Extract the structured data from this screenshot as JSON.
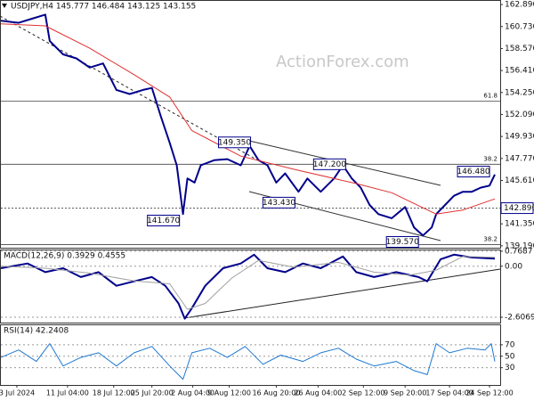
{
  "chart_data": [
    {
      "type": "line",
      "title": "USDJPY,H4  145.777 146.484 143.125 143.155",
      "watermark": "ActionForex.com",
      "xlim": [
        0,
        562
      ],
      "ylim": [
        139.0,
        163.25
      ],
      "yticks": [
        {
          "value": 162.89,
          "label": "162.890"
        },
        {
          "value": 160.73,
          "label": "160.730"
        },
        {
          "value": 158.57,
          "label": "158.570"
        },
        {
          "value": 156.41,
          "label": "156.410"
        },
        {
          "value": 154.25,
          "label": "154.250"
        },
        {
          "value": 152.09,
          "label": "152.090"
        },
        {
          "value": 149.93,
          "label": "149.930"
        },
        {
          "value": 147.77,
          "label": "147.770"
        },
        {
          "value": 145.61,
          "label": "145.610"
        },
        {
          "value": 141.35,
          "label": "141.350"
        },
        {
          "value": 139.19,
          "label": "139.190"
        }
      ],
      "series": [
        {
          "color": "#00008b",
          "x": [
            0,
            20,
            35,
            50,
            55,
            70,
            85,
            100,
            115,
            130,
            145,
            160,
            170,
            180,
            190,
            198,
            205,
            210,
            218,
            225,
            240,
            255,
            270,
            280,
            290,
            300,
            310,
            320,
            335,
            345,
            360,
            375,
            385,
            395,
            405,
            415,
            425,
            440,
            455,
            465,
            475,
            485,
            490,
            500,
            510,
            520,
            530,
            540,
            550,
            556
          ],
          "values": [
            161.3,
            161.1,
            161.5,
            161.9,
            159.3,
            158.0,
            157.6,
            156.7,
            157.1,
            154.5,
            154.1,
            154.5,
            154.7,
            151.9,
            149.3,
            147.1,
            142.3,
            145.8,
            145.4,
            147.1,
            147.6,
            147.7,
            147.1,
            149.0,
            147.6,
            147.1,
            145.4,
            146.3,
            144.5,
            145.8,
            144.5,
            145.8,
            147.1,
            145.8,
            144.9,
            143.2,
            142.3,
            141.9,
            143.0,
            141.0,
            140.2,
            141.0,
            142.3,
            143.2,
            144.1,
            144.5,
            144.5,
            144.9,
            145.1,
            146.2
          ]
        },
        {
          "color": "#e03030",
          "x": [
            0,
            50,
            100,
            150,
            190,
            215,
            270,
            330,
            400,
            440,
            490,
            520,
            556
          ],
          "values": [
            161.0,
            160.8,
            158.6,
            156.0,
            153.8,
            150.5,
            148.0,
            146.7,
            145.3,
            144.4,
            142.3,
            142.7,
            143.8
          ]
        }
      ],
      "last_price": {
        "value": 142.89,
        "label": "142.890"
      },
      "levels": [
        {
          "label": "61.8",
          "value": 153.4
        },
        {
          "label": "38.2",
          "value": 147.2
        },
        {
          "label": "38.2",
          "value": 139.3
        }
      ],
      "annotations": [
        {
          "x": 263,
          "value": 149.35,
          "label": "149.350"
        },
        {
          "x": 370,
          "value": 147.2,
          "label": "147.200"
        },
        {
          "x": 532,
          "value": 146.48,
          "label": "146.480"
        },
        {
          "x": 313,
          "value": 143.43,
          "label": "143.430"
        },
        {
          "x": 183,
          "value": 141.67,
          "label": "141.670"
        },
        {
          "x": 452,
          "value": 139.57,
          "label": "139.570"
        }
      ]
    },
    {
      "type": "line",
      "title": "MACD(12,26,9) 0.3929 0.4555",
      "xlim": [
        0,
        562
      ],
      "ylim": [
        -2.88,
        0.81
      ],
      "yticks": [
        0.7687,
        {
          "value": 0,
          "label": "0.00"
        },
        -2.6069
      ],
      "series": [
        {
          "color": "#00008b",
          "x": [
            0,
            30,
            50,
            70,
            90,
            110,
            130,
            150,
            170,
            185,
            200,
            207,
            215,
            230,
            250,
            270,
            285,
            300,
            320,
            340,
            360,
            385,
            400,
            420,
            445,
            470,
            480,
            495,
            510,
            530,
            556
          ],
          "values": [
            -0.1,
            0.14,
            -0.3,
            -0.1,
            -0.55,
            -0.3,
            -1.0,
            -0.77,
            -0.55,
            -1.0,
            -1.9,
            -2.68,
            -2.14,
            -1.0,
            -0.1,
            0.14,
            0.59,
            -0.1,
            -0.3,
            0.14,
            -0.1,
            0.5,
            -0.3,
            -0.55,
            -0.3,
            -0.55,
            -0.77,
            0.36,
            0.59,
            0.45,
            0.39
          ]
        },
        {
          "color": "#a0a0a0",
          "x": [
            0,
            50,
            100,
            150,
            190,
            210,
            230,
            260,
            290,
            330,
            380,
            420,
            460,
            490,
            520,
            556
          ],
          "values": [
            0.0,
            -0.1,
            -0.35,
            -0.75,
            -0.9,
            -2.2,
            -1.9,
            -0.6,
            0.3,
            -0.05,
            0.2,
            -0.3,
            -0.45,
            -0.2,
            0.5,
            0.46
          ]
        }
      ]
    },
    {
      "type": "line",
      "title": "RSI(14) 42.2408",
      "xlim": [
        0,
        562
      ],
      "ylim": [
        0,
        104
      ],
      "yticks": [
        70,
        50,
        30
      ],
      "xticks": [
        {
          "value": 18,
          "label": "3 Jul 2024"
        },
        {
          "value": 75,
          "label": "11 Jul 04:00"
        },
        {
          "value": 127,
          "label": "18 Jul 12:00"
        },
        {
          "value": 170,
          "label": "25 Jul 20:00"
        },
        {
          "value": 216,
          "label": "2 Aug 04:00"
        },
        {
          "value": 257,
          "label": "9 Aug 12:00"
        },
        {
          "value": 310,
          "label": "16 Aug 20:00"
        },
        {
          "value": 357,
          "label": "26 Aug 04:00"
        },
        {
          "value": 408,
          "label": "2 Sep 12:00"
        },
        {
          "value": 455,
          "label": "9 Sep 20:00"
        },
        {
          "value": 505,
          "label": "17 Sep 04:00"
        },
        {
          "value": 550,
          "label": "24 Sep 12:00"
        }
      ],
      "series": [
        {
          "color": "#1e78d0",
          "x": [
            0,
            20,
            40,
            55,
            70,
            90,
            110,
            130,
            150,
            170,
            190,
            205,
            215,
            235,
            255,
            275,
            295,
            315,
            340,
            360,
            380,
            400,
            420,
            445,
            465,
            480,
            490,
            505,
            525,
            545,
            552,
            556
          ],
          "values": [
            48,
            61,
            41,
            72,
            33,
            48,
            56,
            33,
            56,
            67,
            33,
            10,
            56,
            64,
            48,
            67,
            36,
            52,
            41,
            56,
            64,
            45,
            33,
            41,
            25,
            18,
            72,
            56,
            64,
            61,
            72,
            41
          ]
        }
      ]
    }
  ]
}
